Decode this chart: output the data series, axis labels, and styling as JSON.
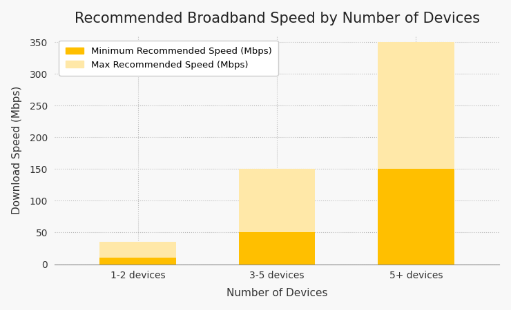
{
  "categories": [
    "1-2 devices",
    "3-5 devices",
    "5+ devices"
  ],
  "min_speed": [
    10,
    50,
    150
  ],
  "max_speed": [
    35,
    150,
    350
  ],
  "color_min": "#FFBF00",
  "color_max": "#FFE8A8",
  "title": "Recommended Broadband Speed by Number of Devices",
  "xlabel": "Number of Devices",
  "ylabel": "Download Speed (Mbps)",
  "ylim": [
    0,
    360
  ],
  "yticks": [
    0,
    50,
    100,
    150,
    200,
    250,
    300,
    350
  ],
  "legend_min": "Minimum Recommended Speed (Mbps)",
  "legend_max": "Max Recommended Speed (Mbps)",
  "title_fontsize": 15,
  "label_fontsize": 11,
  "tick_fontsize": 10,
  "background_color": "#f8f8f8",
  "bar_width": 0.55
}
